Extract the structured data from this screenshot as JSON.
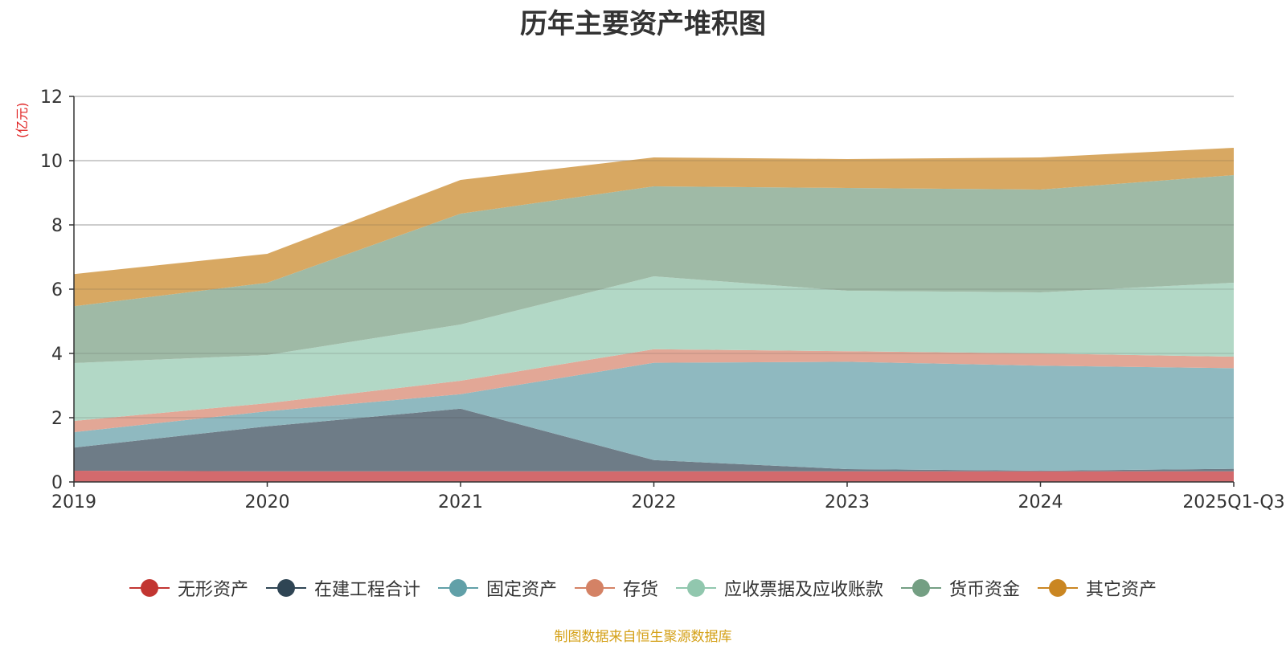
{
  "chart_data": {
    "type": "area",
    "stacked": true,
    "title": "历年主要资产堆积图",
    "ylabel": "(亿元)",
    "xlabel": "",
    "ylim": [
      0,
      12
    ],
    "yticks": [
      0,
      2,
      4,
      6,
      8,
      10,
      12
    ],
    "grid": true,
    "legend_position": "bottom",
    "categories": [
      "2019",
      "2020",
      "2021",
      "2022",
      "2023",
      "2024",
      "2025Q1-Q3"
    ],
    "series": [
      {
        "name": "无形资产",
        "color": "#c23531",
        "fill": "#d36a6d",
        "values": [
          0.35,
          0.33,
          0.33,
          0.33,
          0.33,
          0.33,
          0.33
        ]
      },
      {
        "name": "在建工程合计",
        "color": "#2f4554",
        "fill": "#6e7c87",
        "values": [
          0.72,
          1.4,
          1.95,
          0.35,
          0.07,
          0.02,
          0.08
        ]
      },
      {
        "name": "固定资产",
        "color": "#61a0a8",
        "fill": "#8fb9c0",
        "values": [
          0.48,
          0.47,
          0.45,
          3.03,
          3.34,
          3.27,
          3.13
        ]
      },
      {
        "name": "存货",
        "color": "#d48265",
        "fill": "#e2a796",
        "values": [
          0.35,
          0.25,
          0.42,
          0.42,
          0.33,
          0.38,
          0.36
        ]
      },
      {
        "name": "应收票据及应收账款",
        "color": "#91c7ae",
        "fill": "#b2d8c6",
        "values": [
          1.8,
          1.5,
          1.75,
          2.27,
          1.88,
          1.9,
          2.3
        ]
      },
      {
        "name": "货币资金",
        "color": "#749f83",
        "fill": "#9fbaa6",
        "values": [
          1.77,
          2.25,
          3.45,
          2.8,
          3.2,
          3.2,
          3.35
        ]
      },
      {
        "name": "其它资产",
        "color": "#ca8622",
        "fill": "#d8a862",
        "values": [
          1.0,
          0.9,
          1.05,
          0.9,
          0.9,
          1.0,
          0.85
        ]
      }
    ]
  },
  "footer": {
    "source": "制图数据来自恒生聚源数据库"
  }
}
